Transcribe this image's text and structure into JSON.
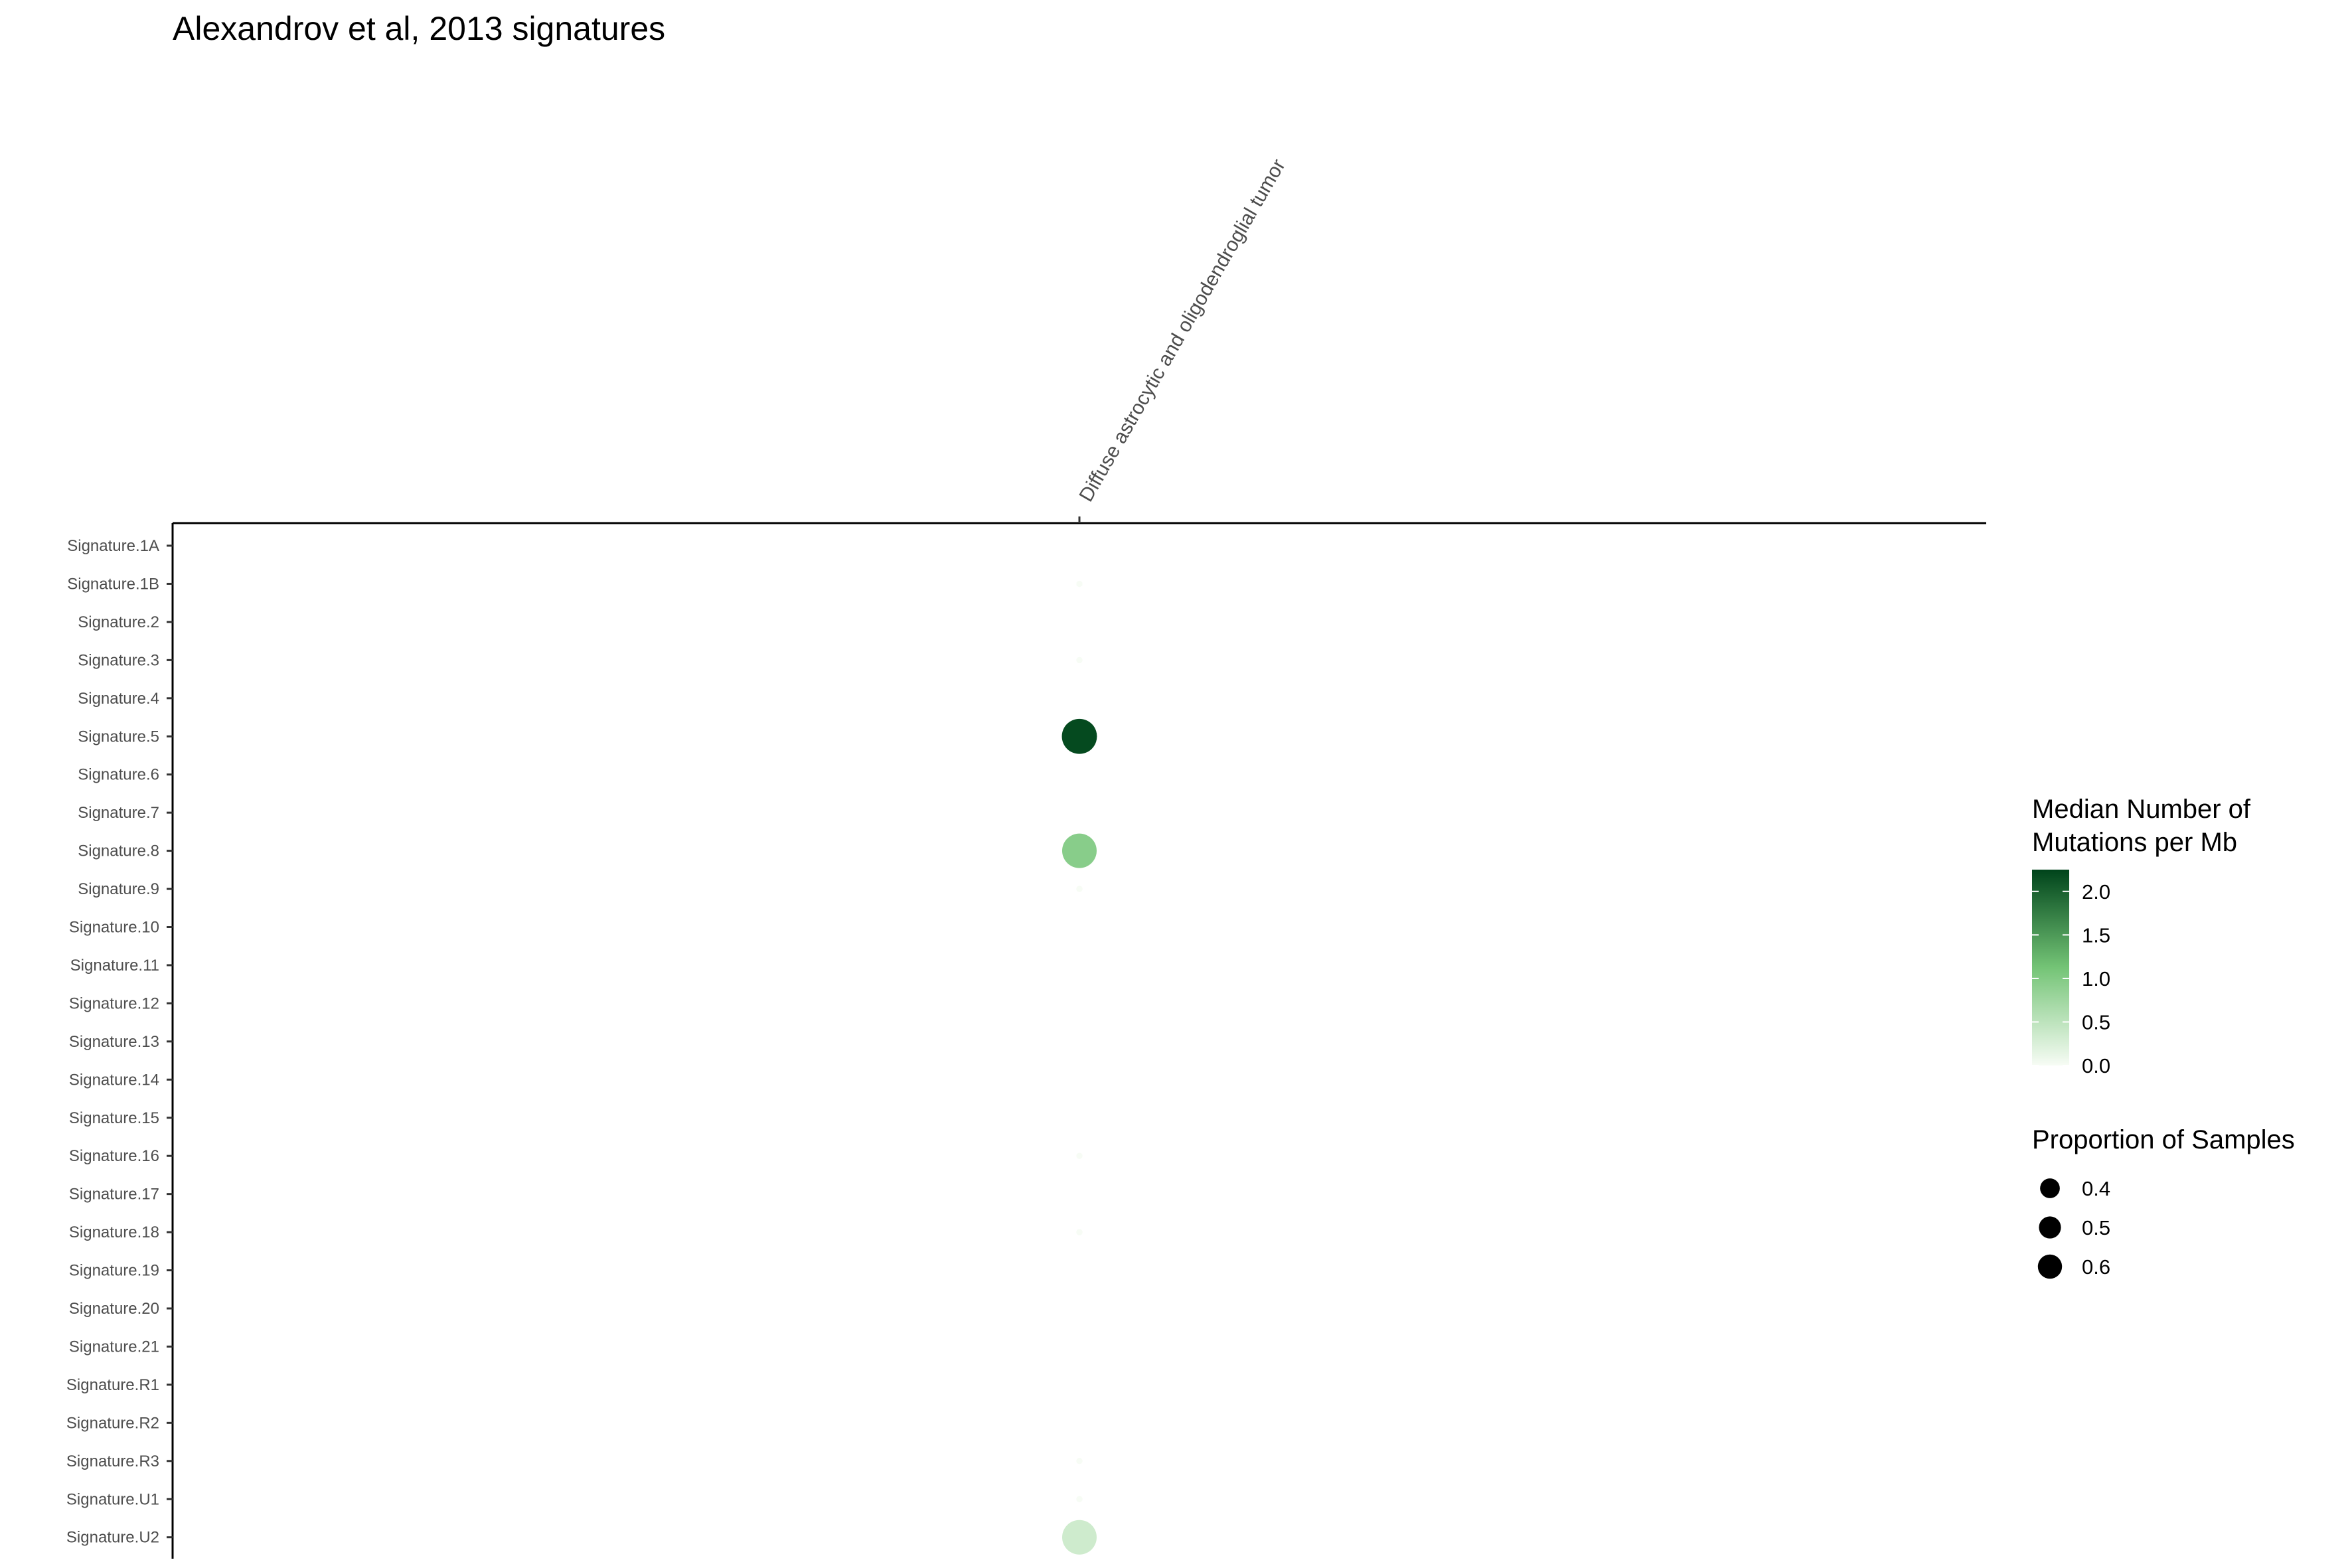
{
  "chart_data": {
    "type": "scatter",
    "title": "Alexandrov et al, 2013 signatures",
    "x_categories": [
      "Diffuse astrocytic and oligodendroglial tumor"
    ],
    "y_categories": [
      "Signature.1A",
      "Signature.1B",
      "Signature.2",
      "Signature.3",
      "Signature.4",
      "Signature.5",
      "Signature.6",
      "Signature.7",
      "Signature.8",
      "Signature.9",
      "Signature.10",
      "Signature.11",
      "Signature.12",
      "Signature.13",
      "Signature.14",
      "Signature.15",
      "Signature.16",
      "Signature.17",
      "Signature.18",
      "Signature.19",
      "Signature.20",
      "Signature.21",
      "Signature.R1",
      "Signature.R2",
      "Signature.R3",
      "Signature.U1",
      "Signature.U2"
    ],
    "points": [
      {
        "x": "Diffuse astrocytic and oligodendroglial tumor",
        "y": "Signature.1B",
        "median_mutations_per_mb": 0.0,
        "proportion_of_samples": 0.02
      },
      {
        "x": "Diffuse astrocytic and oligodendroglial tumor",
        "y": "Signature.3",
        "median_mutations_per_mb": 0.0,
        "proportion_of_samples": 0.02
      },
      {
        "x": "Diffuse astrocytic and oligodendroglial tumor",
        "y": "Signature.5",
        "median_mutations_per_mb": 2.2,
        "proportion_of_samples": 0.62
      },
      {
        "x": "Diffuse astrocytic and oligodendroglial tumor",
        "y": "Signature.8",
        "median_mutations_per_mb": 0.95,
        "proportion_of_samples": 0.6
      },
      {
        "x": "Diffuse astrocytic and oligodendroglial tumor",
        "y": "Signature.9",
        "median_mutations_per_mb": 0.0,
        "proportion_of_samples": 0.02
      },
      {
        "x": "Diffuse astrocytic and oligodendroglial tumor",
        "y": "Signature.16",
        "median_mutations_per_mb": 0.0,
        "proportion_of_samples": 0.02
      },
      {
        "x": "Diffuse astrocytic and oligodendroglial tumor",
        "y": "Signature.18",
        "median_mutations_per_mb": 0.0,
        "proportion_of_samples": 0.02
      },
      {
        "x": "Diffuse astrocytic and oligodendroglial tumor",
        "y": "Signature.R3",
        "median_mutations_per_mb": 0.0,
        "proportion_of_samples": 0.02
      },
      {
        "x": "Diffuse astrocytic and oligodendroglial tumor",
        "y": "Signature.U1",
        "median_mutations_per_mb": 0.0,
        "proportion_of_samples": 0.02
      },
      {
        "x": "Diffuse astrocytic and oligodendroglial tumor",
        "y": "Signature.U2",
        "median_mutations_per_mb": 0.35,
        "proportion_of_samples": 0.6
      }
    ],
    "color_legend": {
      "title": "Median Number of\n Mutations per Mb",
      "ticks": [
        2.0,
        1.5,
        1.0,
        0.5,
        0.0
      ],
      "tick_labels": [
        "2.0",
        "1.5",
        "1.0",
        "0.5",
        "0.0"
      ],
      "range": [
        0.0,
        2.25
      ],
      "color_low": "#f7fcf5",
      "color_mid": "#74c476",
      "color_high": "#00441b"
    },
    "size_legend": {
      "title": "Proportion of Samples",
      "values": [
        0.4,
        0.5,
        0.6
      ],
      "labels": [
        "0.4",
        "0.5",
        "0.6"
      ],
      "color": "#000000"
    },
    "x_axis_position": "top",
    "grid": false,
    "legend_position": "right"
  }
}
